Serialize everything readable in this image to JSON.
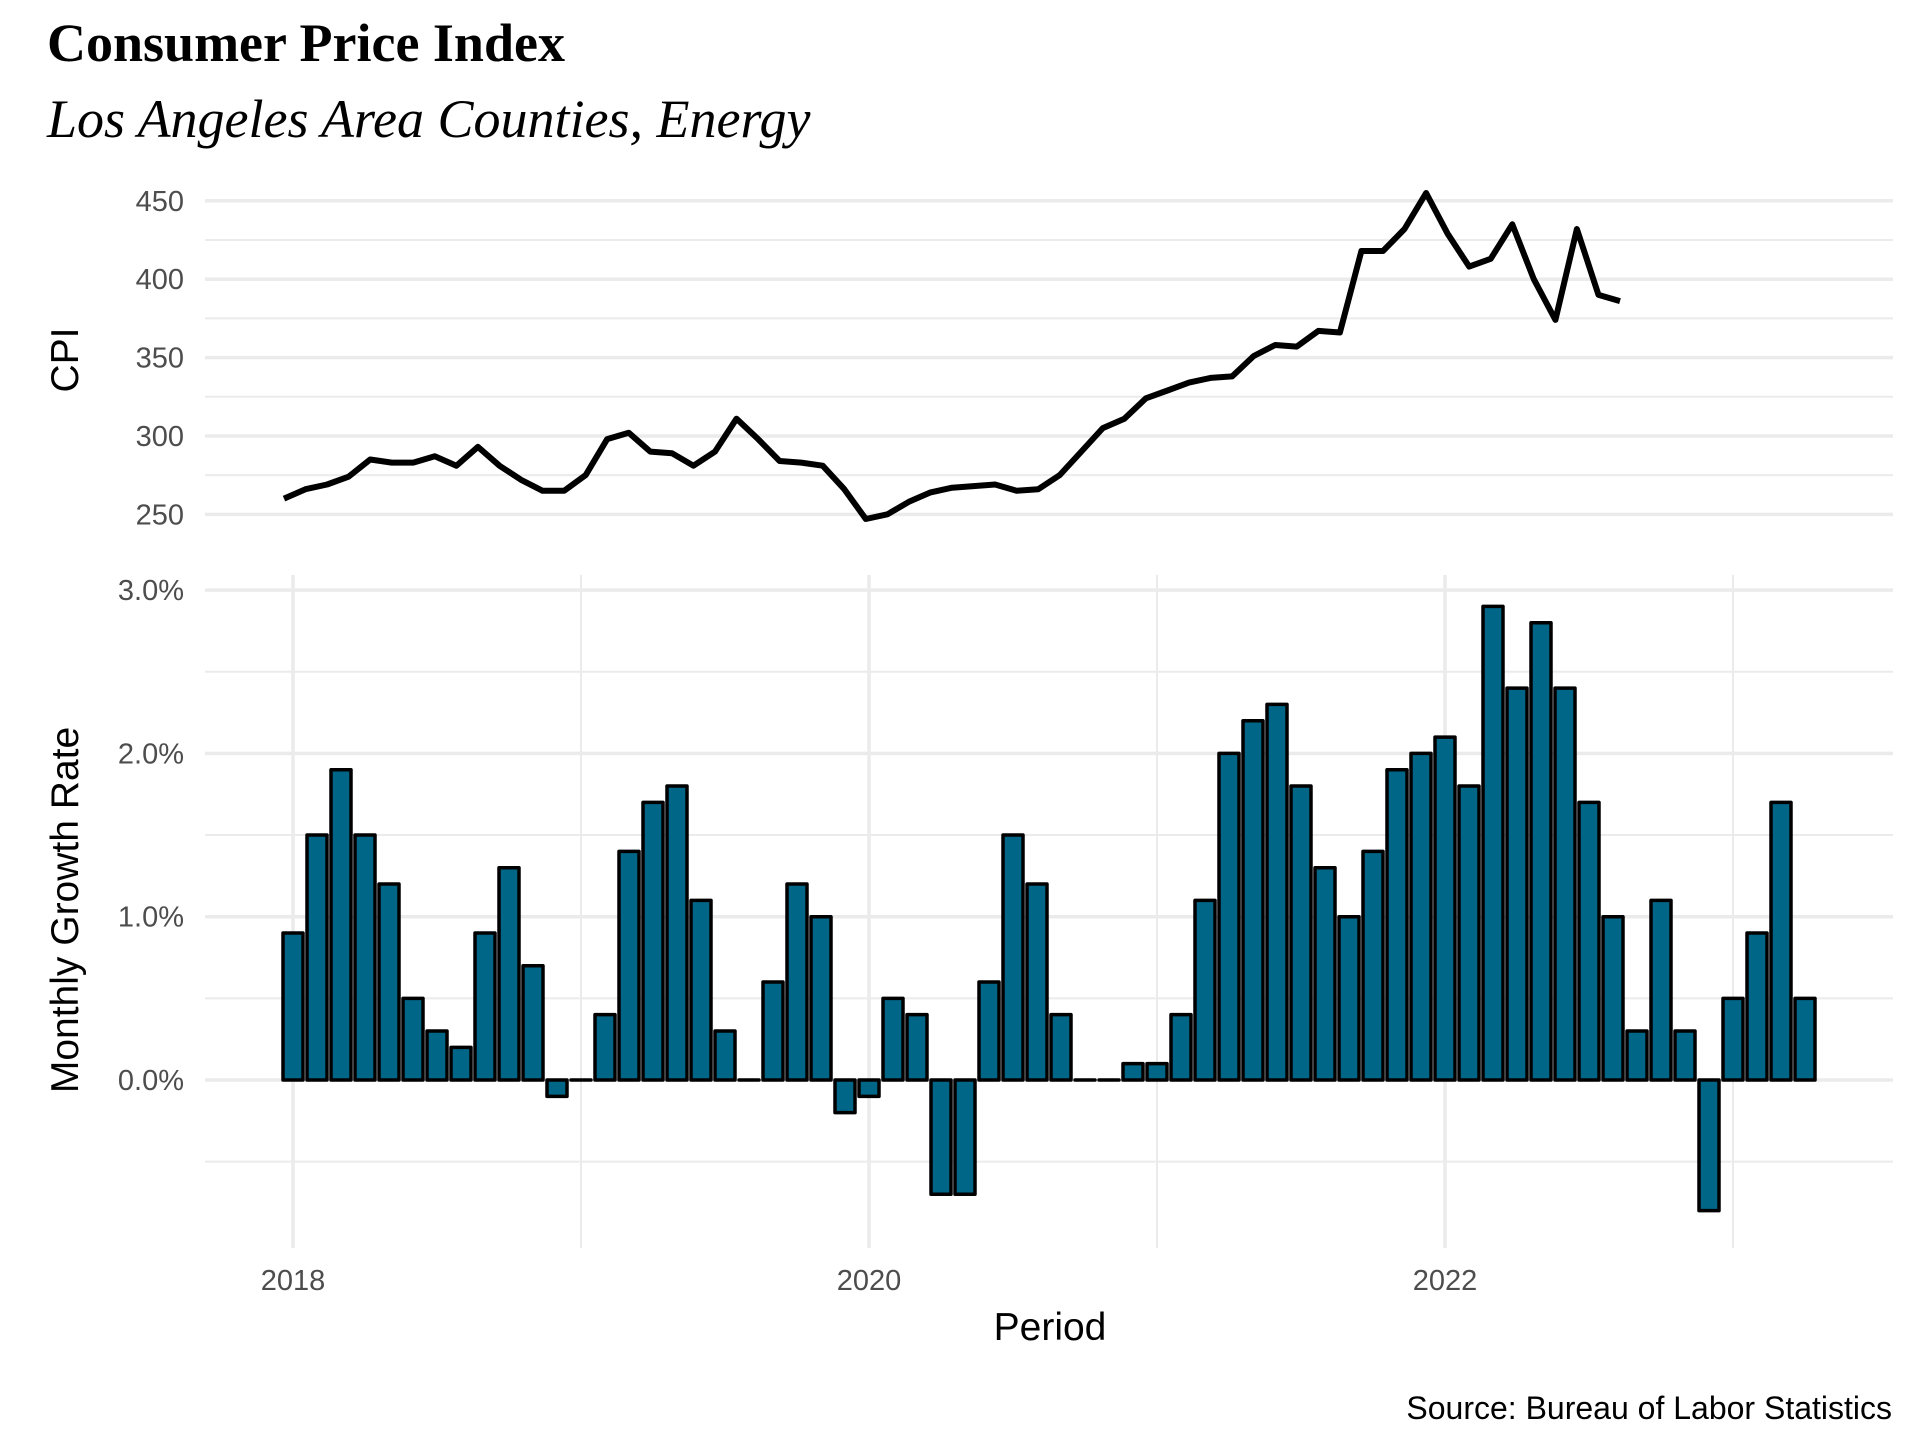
{
  "header": {
    "title": "Consumer Price Index",
    "subtitle": "Los Angeles Area Counties, Energy"
  },
  "caption": "Source: Bureau of Labor Statistics",
  "colors": {
    "bar_fill": "#006688",
    "bar_outline": "#000000",
    "line": "#000000",
    "grid": "#ebebeb"
  },
  "chart_data": [
    {
      "type": "line",
      "panel": "top",
      "title": "Consumer Price Index",
      "ylabel": "CPI",
      "xlabel": "",
      "ylim": [
        240,
        462
      ],
      "yticks": [
        250,
        300,
        350,
        400,
        450
      ],
      "ytick_labels": [
        "250",
        "300",
        "350",
        "400",
        "450"
      ],
      "grid": true,
      "series": [
        {
          "name": "CPI",
          "values": [
            260,
            266,
            269,
            274,
            285,
            283,
            283,
            287,
            281,
            293,
            281,
            272,
            265,
            265,
            275,
            298,
            302,
            290,
            289,
            281,
            290,
            311,
            298,
            284,
            283,
            281,
            266,
            247,
            250,
            258,
            264,
            267,
            268,
            269,
            265,
            266,
            275,
            290,
            305,
            311,
            324,
            329,
            334,
            337,
            338,
            351,
            358,
            357,
            367,
            366,
            418,
            418,
            432,
            455,
            429,
            408,
            413,
            435,
            400,
            374,
            432,
            390,
            386
          ]
        }
      ]
    },
    {
      "type": "bar",
      "panel": "bottom",
      "ylabel": "Monthly Growth Rate",
      "xlabel": "Period",
      "ylim": [
        -1.0,
        3.1
      ],
      "yticks": [
        0.0,
        1.0,
        2.0,
        3.0
      ],
      "ytick_labels": [
        "0.0%",
        "1.0%",
        "2.0%",
        "3.0%"
      ],
      "xlim": [
        "2017-08",
        "2023-08"
      ],
      "xticks": [
        "2018",
        "2020",
        "2022"
      ],
      "x_start": "2018-01",
      "grid": true,
      "series": [
        {
          "name": "Monthly Growth Rate (%)",
          "values": [
            0.9,
            1.5,
            1.9,
            1.5,
            1.2,
            0.5,
            0.3,
            0.2,
            0.9,
            1.3,
            0.7,
            -0.1,
            0.0,
            0.4,
            1.4,
            1.7,
            1.8,
            1.1,
            0.3,
            0.0,
            0.6,
            1.2,
            1.0,
            -0.2,
            -0.1,
            0.5,
            0.4,
            -0.7,
            -0.7,
            0.6,
            1.5,
            1.2,
            0.4,
            0.0,
            0.0,
            0.1,
            0.1,
            0.4,
            1.1,
            2.0,
            2.2,
            2.3,
            1.8,
            1.3,
            1.0,
            1.4,
            1.9,
            2.0,
            2.1,
            1.8,
            2.9,
            2.4,
            2.8,
            2.4,
            1.7,
            1.0,
            0.3,
            1.1,
            0.3,
            -0.8,
            0.5,
            0.9,
            1.7,
            0.5
          ]
        }
      ]
    }
  ]
}
